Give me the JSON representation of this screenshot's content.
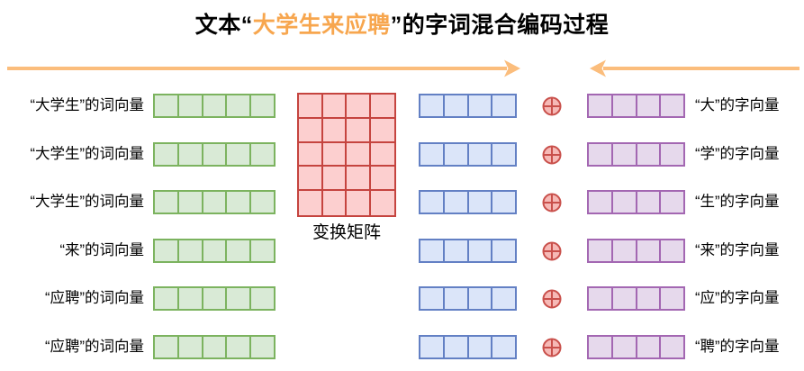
{
  "title": {
    "prefix": "文本“",
    "highlight": "大学生来应聘",
    "suffix": "”的字词混合编码过程"
  },
  "matrix": {
    "label": "变换矩阵",
    "rows": 5,
    "cols": 4
  },
  "vectors": {
    "word_vector_cells": 5,
    "transformed_vector_cells": 4,
    "char_vector_cells": 4,
    "operator_icon": "plus-circle (⊕)"
  },
  "rows": [
    {
      "left_label": "“大学生”的词向量",
      "right_label": "“大”的字向量"
    },
    {
      "left_label": "“大学生”的词向量",
      "right_label": "“学”的字向量"
    },
    {
      "left_label": "“大学生”的词向量",
      "right_label": "“生”的字向量"
    },
    {
      "left_label": "“来”的词向量",
      "right_label": "“来”的字向量"
    },
    {
      "left_label": "“应聘”的词向量",
      "right_label": "“应”的字向量"
    },
    {
      "left_label": "“应聘”的词向量",
      "right_label": "“聘”的字向量"
    }
  ],
  "colors": {
    "title_text": "#000000",
    "title_highlight": "#F7A64E",
    "arrow": "#FBBD7C",
    "word_vector_stroke": "#7CB35F",
    "word_vector_fill": "#D9EAD6",
    "matrix_stroke": "#C5443F",
    "matrix_fill": "#FCCFCF",
    "transformed_vector_stroke": "#6380C4",
    "transformed_vector_fill": "#DBE5F9",
    "char_vector_stroke": "#A367B2",
    "char_vector_fill": "#E6D9EC",
    "plus_circle_stroke": "#C9504B",
    "plus_circle_fill": "#F6B9B6"
  }
}
